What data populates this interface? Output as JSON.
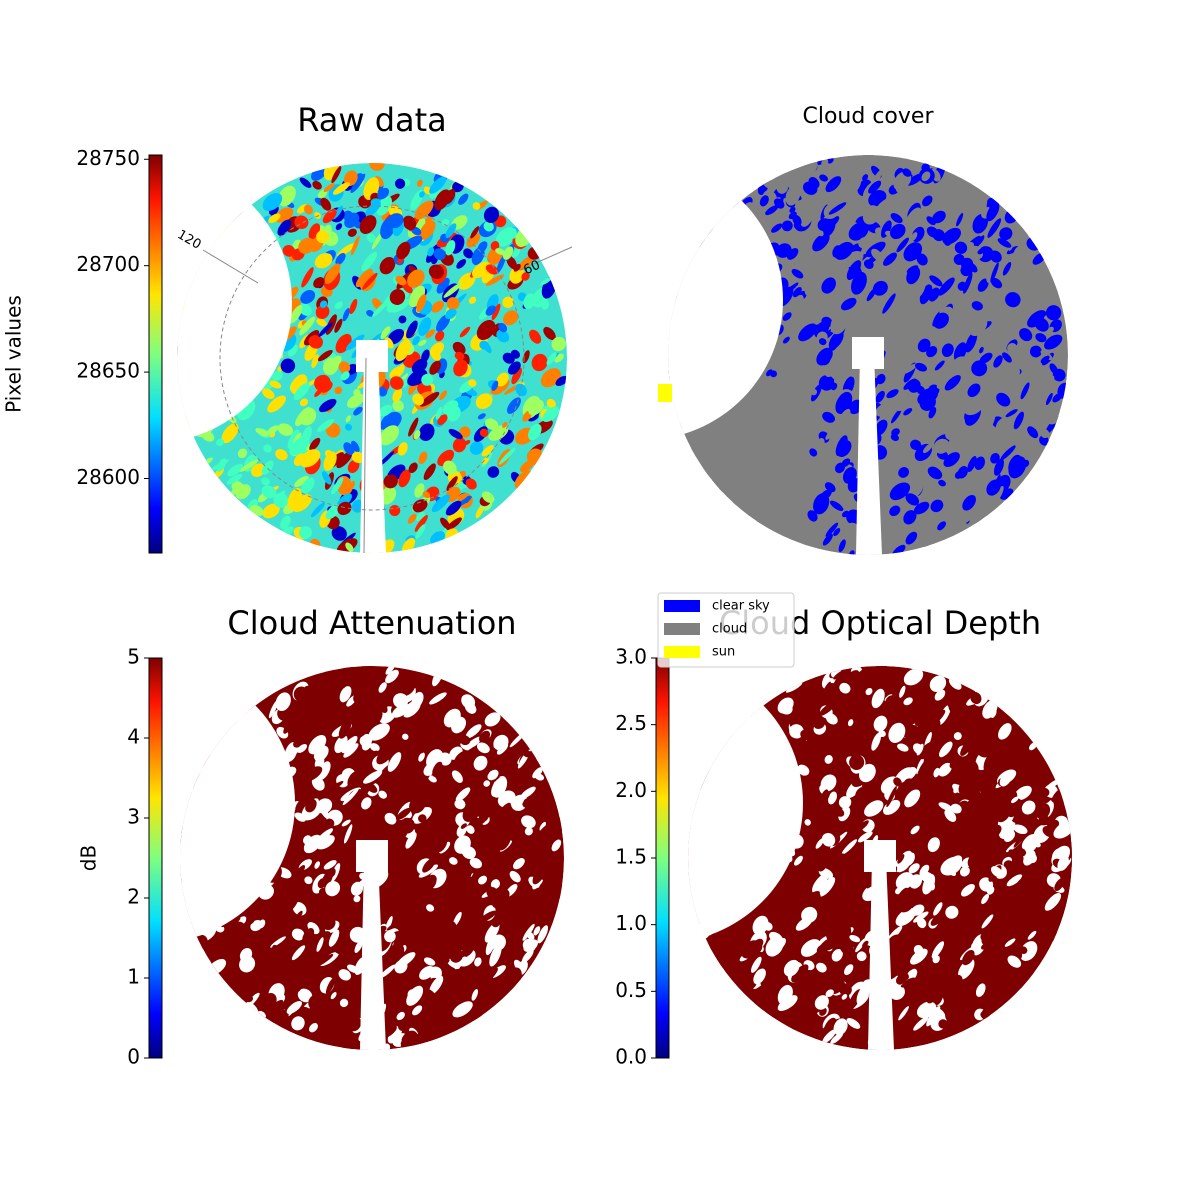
{
  "chart_data": [
    {
      "type": "image",
      "title": "Raw data",
      "colorbar_label": "Pixel values",
      "colormap": "jet",
      "ylim": [
        28565,
        28752
      ],
      "yticks": [
        28600,
        28650,
        28700,
        28750
      ],
      "annotations": [
        "120",
        "60"
      ]
    },
    {
      "type": "mask",
      "title": "Cloud cover",
      "series": [
        {
          "name": "clear sky",
          "color": "#0000ff"
        },
        {
          "name": "cloud",
          "color": "#808080"
        },
        {
          "name": "sun",
          "color": "#ffff00"
        }
      ]
    },
    {
      "type": "image",
      "title": "Cloud Attenuation",
      "colorbar_label": "dB",
      "colormap": "jet",
      "color": "#7f0000",
      "ylim": [
        0,
        5
      ],
      "yticks": [
        0,
        1,
        2,
        3,
        4,
        5
      ]
    },
    {
      "type": "image",
      "title": "Cloud Optical Depth",
      "colormap": "jet",
      "color": "#7f0000",
      "ylim": [
        0,
        3
      ],
      "yticks": [
        {
          "value": 0,
          "label": "0.0"
        },
        0.5,
        {
          "value": 1,
          "label": "1.0"
        },
        1.5,
        {
          "value": 2,
          "label": "2.0"
        },
        2.5,
        {
          "value": 3,
          "label": "3.0"
        }
      ]
    }
  ]
}
